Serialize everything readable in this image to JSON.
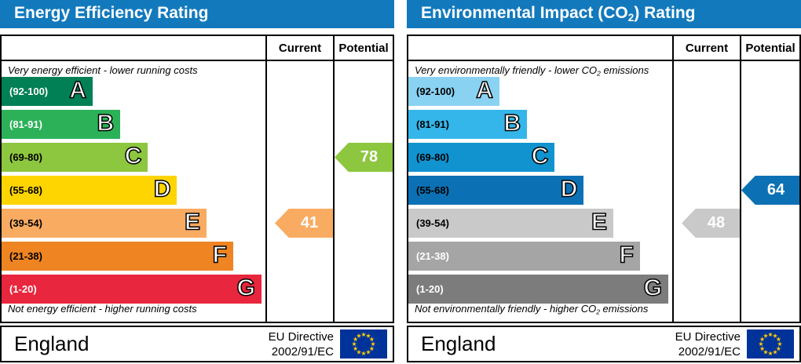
{
  "chart_data": [
    {
      "type": "bar",
      "subtype": "epc-energy-efficiency",
      "title": "Energy Efficiency Rating",
      "columns": [
        "Current",
        "Potential"
      ],
      "bands": [
        {
          "letter": "A",
          "range": "92-100",
          "color": "#008054"
        },
        {
          "letter": "B",
          "range": "81-91",
          "color": "#2cb159"
        },
        {
          "letter": "C",
          "range": "69-80",
          "color": "#8dc63f"
        },
        {
          "letter": "D",
          "range": "55-68",
          "color": "#fed401"
        },
        {
          "letter": "E",
          "range": "39-54",
          "color": "#f9ab62"
        },
        {
          "letter": "F",
          "range": "21-38",
          "color": "#ee8422"
        },
        {
          "letter": "G",
          "range": "1-20",
          "color": "#e8263d"
        }
      ],
      "current": {
        "value": 41,
        "band": "E"
      },
      "potential": {
        "value": 78,
        "band": "C"
      }
    },
    {
      "type": "bar",
      "subtype": "epc-environmental-impact-co2",
      "title": "Environmental Impact (CO2) Rating",
      "columns": [
        "Current",
        "Potential"
      ],
      "bands": [
        {
          "letter": "A",
          "range": "92-100",
          "color": "#8ad2f1"
        },
        {
          "letter": "B",
          "range": "81-91",
          "color": "#35b6ea"
        },
        {
          "letter": "C",
          "range": "69-80",
          "color": "#1193d0"
        },
        {
          "letter": "D",
          "range": "55-68",
          "color": "#0c71b4"
        },
        {
          "letter": "E",
          "range": "39-54",
          "color": "#c9c9c9"
        },
        {
          "letter": "F",
          "range": "21-38",
          "color": "#a5a5a5"
        },
        {
          "letter": "G",
          "range": "1-20",
          "color": "#7c7c7c"
        }
      ],
      "current": {
        "value": 48,
        "band": "E"
      },
      "potential": {
        "value": 64,
        "band": "D"
      }
    }
  ],
  "eu_flag": {
    "bg": "#003399",
    "star_color": "#ffcc00"
  },
  "panels": [
    {
      "header_color": "#1279bd",
      "title": {
        "pre": "Energy Efficiency Rating",
        "sub": "",
        "post": ""
      },
      "columns": {
        "current": "Current",
        "potential": "Potential"
      },
      "top_caption": {
        "pre": "Very energy efficient - lower running costs",
        "sub": "",
        "post": ""
      },
      "bottom_caption": {
        "pre": "Not energy efficient - higher running costs",
        "sub": "",
        "post": ""
      },
      "bands": [
        {
          "range": "(92-100)",
          "letter": "A",
          "color": "#008054",
          "label_color": "#ffffff",
          "width_pct": 34.5
        },
        {
          "range": "(81-91)",
          "letter": "B",
          "color": "#2cb159",
          "label_color": "#ffffff",
          "width_pct": 45
        },
        {
          "range": "(69-80)",
          "letter": "C",
          "color": "#8dc63f",
          "label_color": "#000000",
          "width_pct": 55.5
        },
        {
          "range": "(55-68)",
          "letter": "D",
          "color": "#fed401",
          "label_color": "#000000",
          "width_pct": 66.5
        },
        {
          "range": "(39-54)",
          "letter": "E",
          "color": "#f9ab62",
          "label_color": "#000000",
          "width_pct": 77.7
        },
        {
          "range": "(21-38)",
          "letter": "F",
          "color": "#ee8422",
          "label_color": "#000000",
          "width_pct": 87.8
        },
        {
          "range": "(1-20)",
          "letter": "G",
          "color": "#e8263d",
          "label_color": "#ffffff",
          "width_pct": 98.5
        }
      ],
      "current": {
        "value": "41",
        "band_index": 4,
        "color": "#f9ab62"
      },
      "potential": {
        "value": "78",
        "band_index": 2,
        "color": "#8dc63f"
      },
      "footer": {
        "region": "England",
        "directive_line1": "EU Directive",
        "directive_line2": "2002/91/EC"
      }
    },
    {
      "header_color": "#1279bd",
      "title": {
        "pre": "Environmental Impact (CO",
        "sub": "2",
        "post": ") Rating"
      },
      "columns": {
        "current": "Current",
        "potential": "Potential"
      },
      "top_caption": {
        "pre": "Very environmentally friendly - lower CO",
        "sub": "2",
        "post": " emissions"
      },
      "bottom_caption": {
        "pre": "Not environmentally friendly - higher CO",
        "sub": "2",
        "post": " emissions"
      },
      "bands": [
        {
          "range": "(92-100)",
          "letter": "A",
          "color": "#8ad2f1",
          "label_color": "#000000",
          "width_pct": 34.5
        },
        {
          "range": "(81-91)",
          "letter": "B",
          "color": "#35b6ea",
          "label_color": "#000000",
          "width_pct": 45
        },
        {
          "range": "(69-80)",
          "letter": "C",
          "color": "#1193d0",
          "label_color": "#000000",
          "width_pct": 55.5
        },
        {
          "range": "(55-68)",
          "letter": "D",
          "color": "#0c71b4",
          "label_color": "#000000",
          "width_pct": 66.5
        },
        {
          "range": "(39-54)",
          "letter": "E",
          "color": "#c9c9c9",
          "label_color": "#000000",
          "width_pct": 77.7
        },
        {
          "range": "(21-38)",
          "letter": "F",
          "color": "#a5a5a5",
          "label_color": "#ffffff",
          "width_pct": 87.8
        },
        {
          "range": "(1-20)",
          "letter": "G",
          "color": "#7c7c7c",
          "label_color": "#ffffff",
          "width_pct": 98.5
        }
      ],
      "current": {
        "value": "48",
        "band_index": 4,
        "color": "#c9c9c9"
      },
      "potential": {
        "value": "64",
        "band_index": 3,
        "color": "#0c71b4"
      },
      "footer": {
        "region": "England",
        "directive_line1": "EU Directive",
        "directive_line2": "2002/91/EC"
      }
    }
  ]
}
